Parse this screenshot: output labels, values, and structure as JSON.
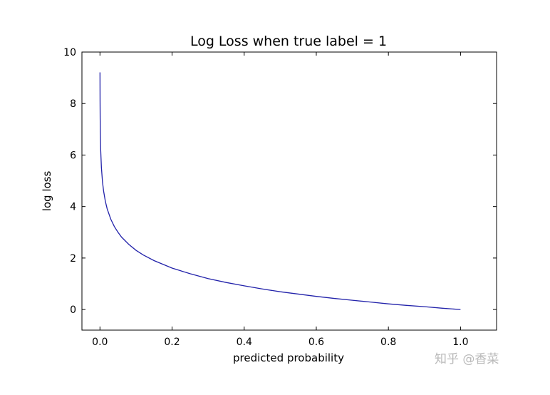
{
  "chart_data": {
    "type": "line",
    "title": "Log Loss when true label = 1",
    "xlabel": "predicted probability",
    "ylabel": "log loss",
    "xlim": [
      -0.05,
      1.1
    ],
    "ylim": [
      -0.8,
      10
    ],
    "xticks": [
      "0.0",
      "0.2",
      "0.4",
      "0.6",
      "0.8",
      "1.0"
    ],
    "yticks": [
      "0",
      "2",
      "4",
      "6",
      "8",
      "10"
    ],
    "grid": false,
    "series": [
      {
        "color": "#2222aa",
        "x": [
          0.0001,
          0.0003,
          0.0006,
          0.001,
          0.002,
          0.004,
          0.007,
          0.01,
          0.015,
          0.02,
          0.03,
          0.04,
          0.05,
          0.06,
          0.08,
          0.1,
          0.12,
          0.15,
          0.2,
          0.25,
          0.3,
          0.35,
          0.4,
          0.45,
          0.5,
          0.55,
          0.6,
          0.65,
          0.7,
          0.75,
          0.8,
          0.85,
          0.9,
          0.95,
          1.0
        ],
        "y": [
          9.21,
          8.11,
          7.42,
          6.91,
          6.21,
          5.52,
          4.96,
          4.61,
          4.2,
          3.91,
          3.51,
          3.22,
          3.0,
          2.81,
          2.53,
          2.3,
          2.12,
          1.9,
          1.61,
          1.39,
          1.2,
          1.05,
          0.92,
          0.8,
          0.69,
          0.6,
          0.51,
          0.43,
          0.36,
          0.29,
          0.22,
          0.16,
          0.11,
          0.05,
          0.0
        ]
      }
    ]
  },
  "watermark": {
    "text": "知乎 @香菜"
  }
}
